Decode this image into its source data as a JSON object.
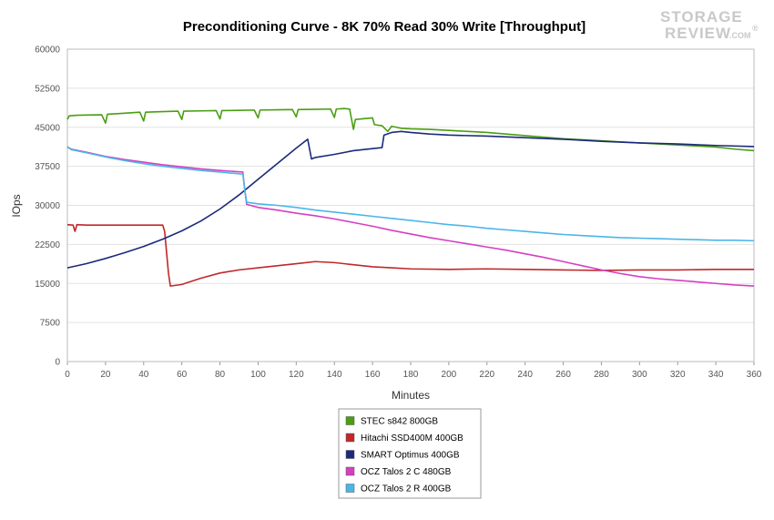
{
  "chart_data": {
    "type": "line",
    "title": "Preconditioning Curve - 8K 70% Read 30% Write [Throughput]",
    "xlabel": "Minutes",
    "ylabel": "IOps",
    "xlim": [
      0,
      360
    ],
    "ylim": [
      0,
      60000
    ],
    "xticks": [
      0,
      20,
      40,
      60,
      80,
      100,
      120,
      140,
      160,
      180,
      200,
      220,
      240,
      260,
      280,
      300,
      320,
      340,
      360
    ],
    "yticks": [
      0,
      7500,
      15000,
      22500,
      30000,
      37500,
      45000,
      52500,
      60000
    ],
    "grid": "horizontal",
    "legend_position": "bottom",
    "series": [
      {
        "name": "STEC s842 800GB",
        "color": "#4a9e12",
        "points": [
          [
            0,
            46500
          ],
          [
            1,
            47200
          ],
          [
            5,
            47300
          ],
          [
            10,
            47350
          ],
          [
            18,
            47400
          ],
          [
            20,
            45800
          ],
          [
            21,
            47500
          ],
          [
            30,
            47700
          ],
          [
            38,
            47900
          ],
          [
            40,
            46200
          ],
          [
            41,
            47900
          ],
          [
            50,
            48000
          ],
          [
            58,
            48100
          ],
          [
            60,
            46500
          ],
          [
            61,
            48100
          ],
          [
            70,
            48150
          ],
          [
            78,
            48200
          ],
          [
            80,
            46600
          ],
          [
            81,
            48200
          ],
          [
            90,
            48250
          ],
          [
            98,
            48300
          ],
          [
            100,
            46800
          ],
          [
            101,
            48300
          ],
          [
            110,
            48350
          ],
          [
            118,
            48400
          ],
          [
            120,
            47000
          ],
          [
            121,
            48400
          ],
          [
            130,
            48450
          ],
          [
            138,
            48500
          ],
          [
            140,
            46900
          ],
          [
            141,
            48500
          ],
          [
            145,
            48600
          ],
          [
            148,
            48500
          ],
          [
            150,
            44600
          ],
          [
            151,
            46500
          ],
          [
            160,
            46800
          ],
          [
            161,
            45500
          ],
          [
            165,
            45300
          ],
          [
            168,
            44200
          ],
          [
            170,
            45200
          ],
          [
            175,
            44800
          ],
          [
            180,
            44700
          ],
          [
            190,
            44600
          ],
          [
            200,
            44400
          ],
          [
            210,
            44200
          ],
          [
            220,
            44000
          ],
          [
            230,
            43700
          ],
          [
            240,
            43400
          ],
          [
            250,
            43100
          ],
          [
            260,
            42800
          ],
          [
            270,
            42600
          ],
          [
            280,
            42400
          ],
          [
            290,
            42200
          ],
          [
            300,
            42000
          ],
          [
            310,
            41800
          ],
          [
            320,
            41600
          ],
          [
            330,
            41400
          ],
          [
            340,
            41200
          ],
          [
            350,
            40800
          ],
          [
            360,
            40500
          ]
        ]
      },
      {
        "name": "Hitachi SSD400M 400GB",
        "color": "#c0282a",
        "points": [
          [
            0,
            26300
          ],
          [
            3,
            26200
          ],
          [
            4,
            25000
          ],
          [
            5,
            26300
          ],
          [
            10,
            26200
          ],
          [
            50,
            26200
          ],
          [
            51,
            25000
          ],
          [
            52,
            21000
          ],
          [
            53,
            17000
          ],
          [
            54,
            14500
          ],
          [
            60,
            14800
          ],
          [
            70,
            16000
          ],
          [
            80,
            17000
          ],
          [
            90,
            17600
          ],
          [
            100,
            18000
          ],
          [
            110,
            18400
          ],
          [
            120,
            18800
          ],
          [
            130,
            19200
          ],
          [
            140,
            19000
          ],
          [
            150,
            18600
          ],
          [
            160,
            18200
          ],
          [
            170,
            18000
          ],
          [
            180,
            17800
          ],
          [
            200,
            17700
          ],
          [
            220,
            17800
          ],
          [
            240,
            17700
          ],
          [
            260,
            17600
          ],
          [
            280,
            17500
          ],
          [
            300,
            17600
          ],
          [
            320,
            17600
          ],
          [
            340,
            17700
          ],
          [
            360,
            17700
          ]
        ]
      },
      {
        "name": "SMART Optimus 400GB",
        "color": "#1b2a7a",
        "points": [
          [
            0,
            18000
          ],
          [
            10,
            18800
          ],
          [
            20,
            19800
          ],
          [
            30,
            20900
          ],
          [
            40,
            22100
          ],
          [
            50,
            23500
          ],
          [
            60,
            25100
          ],
          [
            70,
            27000
          ],
          [
            80,
            29300
          ],
          [
            90,
            32000
          ],
          [
            100,
            35000
          ],
          [
            110,
            38000
          ],
          [
            120,
            41000
          ],
          [
            126,
            42700
          ],
          [
            128,
            38900
          ],
          [
            130,
            39200
          ],
          [
            140,
            39800
          ],
          [
            150,
            40500
          ],
          [
            160,
            40900
          ],
          [
            165,
            41100
          ],
          [
            166,
            43500
          ],
          [
            170,
            44000
          ],
          [
            175,
            44200
          ],
          [
            180,
            44000
          ],
          [
            190,
            43700
          ],
          [
            200,
            43500
          ],
          [
            220,
            43300
          ],
          [
            240,
            43000
          ],
          [
            260,
            42700
          ],
          [
            280,
            42300
          ],
          [
            300,
            42000
          ],
          [
            320,
            41800
          ],
          [
            340,
            41500
          ],
          [
            360,
            41300
          ]
        ]
      },
      {
        "name": "OCZ Talos 2 C 480GB",
        "color": "#d63fc0",
        "points": [
          [
            0,
            41200
          ],
          [
            2,
            40800
          ],
          [
            10,
            40200
          ],
          [
            20,
            39400
          ],
          [
            30,
            38800
          ],
          [
            40,
            38300
          ],
          [
            50,
            37800
          ],
          [
            60,
            37400
          ],
          [
            70,
            37000
          ],
          [
            80,
            36700
          ],
          [
            92,
            36400
          ],
          [
            93,
            33000
          ],
          [
            94,
            30200
          ],
          [
            100,
            29600
          ],
          [
            110,
            29100
          ],
          [
            120,
            28500
          ],
          [
            130,
            28000
          ],
          [
            140,
            27400
          ],
          [
            150,
            26700
          ],
          [
            160,
            26000
          ],
          [
            170,
            25200
          ],
          [
            180,
            24500
          ],
          [
            190,
            23800
          ],
          [
            200,
            23200
          ],
          [
            210,
            22600
          ],
          [
            220,
            22000
          ],
          [
            230,
            21400
          ],
          [
            240,
            20700
          ],
          [
            250,
            20000
          ],
          [
            260,
            19200
          ],
          [
            270,
            18400
          ],
          [
            280,
            17600
          ],
          [
            290,
            16900
          ],
          [
            300,
            16300
          ],
          [
            310,
            15900
          ],
          [
            320,
            15600
          ],
          [
            330,
            15300
          ],
          [
            340,
            15000
          ],
          [
            350,
            14700
          ],
          [
            360,
            14500
          ]
        ]
      },
      {
        "name": "OCZ Talos 2 R 400GB",
        "color": "#4ab6e8",
        "points": [
          [
            0,
            41300
          ],
          [
            2,
            40700
          ],
          [
            10,
            40100
          ],
          [
            20,
            39300
          ],
          [
            30,
            38600
          ],
          [
            40,
            38000
          ],
          [
            50,
            37500
          ],
          [
            60,
            37100
          ],
          [
            70,
            36700
          ],
          [
            80,
            36400
          ],
          [
            92,
            36000
          ],
          [
            93,
            33000
          ],
          [
            94,
            30600
          ],
          [
            100,
            30300
          ],
          [
            110,
            30000
          ],
          [
            120,
            29600
          ],
          [
            130,
            29100
          ],
          [
            140,
            28700
          ],
          [
            150,
            28300
          ],
          [
            160,
            27900
          ],
          [
            170,
            27500
          ],
          [
            180,
            27100
          ],
          [
            190,
            26700
          ],
          [
            200,
            26300
          ],
          [
            210,
            26000
          ],
          [
            220,
            25600
          ],
          [
            230,
            25300
          ],
          [
            240,
            25000
          ],
          [
            250,
            24700
          ],
          [
            260,
            24400
          ],
          [
            270,
            24200
          ],
          [
            280,
            24000
          ],
          [
            290,
            23800
          ],
          [
            300,
            23700
          ],
          [
            310,
            23600
          ],
          [
            320,
            23500
          ],
          [
            330,
            23400
          ],
          [
            340,
            23300
          ],
          [
            350,
            23300
          ],
          [
            360,
            23200
          ]
        ]
      }
    ]
  },
  "logo": {
    "line1": "STORAGE",
    "line2": "REVIEW",
    "suffix": ".COM",
    "mark": "®"
  }
}
